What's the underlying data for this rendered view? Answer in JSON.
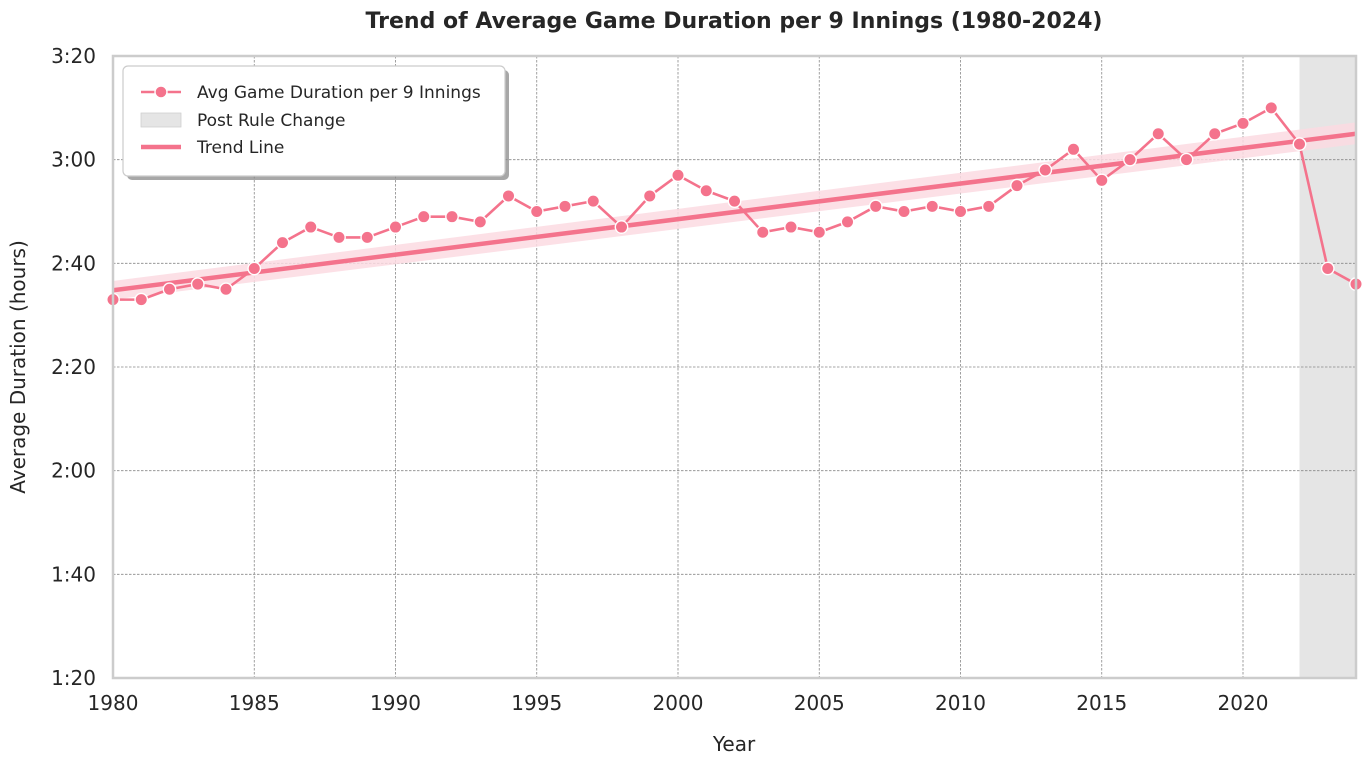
{
  "chart_data": {
    "type": "line",
    "title": "Trend of Average Game Duration per 9 Innings (1980-2024)",
    "xlabel": "Year",
    "ylabel": "Average Duration (hours)",
    "xlim": [
      1980,
      2024
    ],
    "ylim_minutes": [
      80,
      200
    ],
    "x_ticks": [
      1980,
      1985,
      1990,
      1995,
      2000,
      2005,
      2010,
      2015,
      2020
    ],
    "y_ticks": [
      {
        "minutes": 80,
        "label": "1:20"
      },
      {
        "minutes": 100,
        "label": "1:40"
      },
      {
        "minutes": 120,
        "label": "2:00"
      },
      {
        "minutes": 140,
        "label": "2:20"
      },
      {
        "minutes": 160,
        "label": "2:40"
      },
      {
        "minutes": 180,
        "label": "3:00"
      },
      {
        "minutes": 200,
        "label": "3:20"
      }
    ],
    "grid": true,
    "legend_position": "top-left",
    "colors": {
      "series": "#f4738c",
      "band": "#fbdbe2",
      "shade": "#e5e5e5",
      "frame": "#cccccc"
    },
    "series": [
      {
        "name": "Avg Game Duration per 9 Innings",
        "unit": "minutes",
        "x": [
          1980,
          1981,
          1982,
          1983,
          1984,
          1985,
          1986,
          1987,
          1988,
          1989,
          1990,
          1991,
          1992,
          1993,
          1994,
          1995,
          1996,
          1997,
          1998,
          1999,
          2000,
          2001,
          2002,
          2003,
          2004,
          2005,
          2006,
          2007,
          2008,
          2009,
          2010,
          2011,
          2012,
          2013,
          2014,
          2015,
          2016,
          2017,
          2018,
          2019,
          2020,
          2021,
          2022,
          2023,
          2024
        ],
        "y": [
          153,
          153,
          155,
          156,
          155,
          159,
          164,
          167,
          165,
          165,
          167,
          169,
          169,
          168,
          173,
          170,
          171,
          172,
          167,
          173,
          177,
          174,
          172,
          166,
          167,
          166,
          168,
          171,
          170,
          171,
          170,
          171,
          175,
          178,
          182,
          176,
          180,
          185,
          180,
          185,
          187,
          190,
          183,
          159,
          156
        ]
      }
    ],
    "shaded_region": {
      "label": "Post Rule Change",
      "x_start": 2022,
      "x_end": 2024
    },
    "trend_line": {
      "label": "Trend Line",
      "x": [
        1980,
        2024
      ],
      "y": [
        154.8,
        185.0
      ],
      "band_lower": [
        153.0,
        183.0
      ],
      "band_upper": [
        156.6,
        187.2
      ]
    }
  }
}
